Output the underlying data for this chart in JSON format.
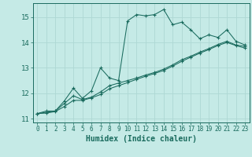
{
  "xlabel": "Humidex (Indice chaleur)",
  "background_color": "#c5eae6",
  "line_color": "#1a6b5e",
  "grid_color": "#aed8d4",
  "xlim": [
    -0.5,
    23.5
  ],
  "ylim": [
    10.85,
    15.55
  ],
  "yticks": [
    11,
    12,
    13,
    14,
    15
  ],
  "xticks": [
    0,
    1,
    2,
    3,
    4,
    5,
    6,
    7,
    8,
    9,
    10,
    11,
    12,
    13,
    14,
    15,
    16,
    17,
    18,
    19,
    20,
    21,
    22,
    23
  ],
  "line1_x": [
    0,
    1,
    2,
    3,
    4,
    5,
    6,
    7,
    8,
    9,
    10,
    11,
    12,
    13,
    14,
    15,
    16,
    17,
    18,
    19,
    20,
    21,
    22,
    23
  ],
  "line1_y": [
    11.2,
    11.3,
    11.3,
    11.7,
    12.2,
    11.8,
    12.1,
    13.0,
    12.6,
    12.5,
    14.85,
    15.1,
    15.05,
    15.1,
    15.3,
    14.7,
    14.8,
    14.5,
    14.15,
    14.3,
    14.2,
    14.5,
    14.05,
    13.9
  ],
  "line2_x": [
    0,
    1,
    2,
    3,
    4,
    5,
    6,
    7,
    8,
    9,
    10,
    11,
    12,
    13,
    14,
    15,
    16,
    17,
    18,
    19,
    20,
    21,
    22,
    23
  ],
  "line2_y": [
    11.2,
    11.25,
    11.3,
    11.6,
    11.9,
    11.75,
    11.85,
    12.05,
    12.3,
    12.4,
    12.5,
    12.6,
    12.72,
    12.82,
    12.95,
    13.12,
    13.32,
    13.46,
    13.62,
    13.76,
    13.92,
    14.05,
    13.9,
    13.85
  ],
  "line3_x": [
    0,
    1,
    2,
    3,
    4,
    5,
    6,
    7,
    8,
    9,
    10,
    11,
    12,
    13,
    14,
    15,
    16,
    17,
    18,
    19,
    20,
    21,
    22,
    23
  ],
  "line3_y": [
    11.2,
    11.22,
    11.28,
    11.48,
    11.72,
    11.72,
    11.82,
    11.95,
    12.18,
    12.3,
    12.42,
    12.55,
    12.67,
    12.78,
    12.9,
    13.07,
    13.26,
    13.42,
    13.58,
    13.72,
    13.88,
    14.0,
    13.88,
    13.78
  ]
}
